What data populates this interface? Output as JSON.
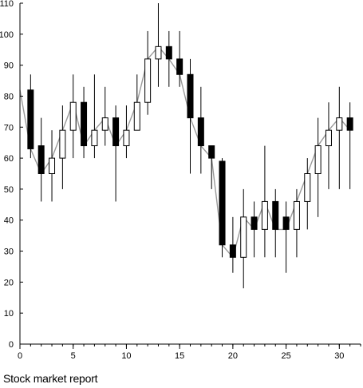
{
  "caption": "Stock market report",
  "chart_data": {
    "type": "candlestick",
    "title": "",
    "xlabel": "",
    "ylabel": "",
    "xlim": [
      0,
      32
    ],
    "ylim": [
      0,
      110
    ],
    "x_ticks": [
      0,
      5,
      10,
      15,
      20,
      25,
      30
    ],
    "y_ticks": [
      0,
      10,
      20,
      30,
      40,
      50,
      60,
      70,
      80,
      90,
      100,
      110
    ],
    "grid": false,
    "legend": "none",
    "colors": {
      "up_fill": "#ffffff",
      "down_fill": "#000000",
      "line": "#9a9a9a",
      "axis": "#000000"
    },
    "close_line_start": 82,
    "candles": [
      {
        "x": 1,
        "open": 82,
        "close": 63,
        "high": 87,
        "low": 60
      },
      {
        "x": 2,
        "open": 64,
        "close": 55,
        "high": 73,
        "low": 46
      },
      {
        "x": 3,
        "open": 55,
        "close": 60,
        "high": 69,
        "low": 46
      },
      {
        "x": 4,
        "open": 60,
        "close": 69,
        "high": 77,
        "low": 50
      },
      {
        "x": 5,
        "open": 69,
        "close": 78,
        "high": 87,
        "low": 60
      },
      {
        "x": 6,
        "open": 78,
        "close": 64,
        "high": 83,
        "low": 60
      },
      {
        "x": 7,
        "open": 64,
        "close": 69,
        "high": 87,
        "low": 60
      },
      {
        "x": 8,
        "open": 69,
        "close": 73,
        "high": 83,
        "low": 64
      },
      {
        "x": 9,
        "open": 73,
        "close": 64,
        "high": 77,
        "low": 46
      },
      {
        "x": 10,
        "open": 64,
        "close": 69,
        "high": 77,
        "low": 60
      },
      {
        "x": 11,
        "open": 69,
        "close": 78,
        "high": 87,
        "low": 69
      },
      {
        "x": 12,
        "open": 78,
        "close": 92,
        "high": 101,
        "low": 74
      },
      {
        "x": 13,
        "open": 92,
        "close": 96,
        "high": 110,
        "low": 83
      },
      {
        "x": 14,
        "open": 96,
        "close": 92,
        "high": 101,
        "low": 83
      },
      {
        "x": 15,
        "open": 92,
        "close": 87,
        "high": 101,
        "low": 83
      },
      {
        "x": 16,
        "open": 87,
        "close": 73,
        "high": 92,
        "low": 55
      },
      {
        "x": 17,
        "open": 73,
        "close": 64,
        "high": 83,
        "low": 55
      },
      {
        "x": 18,
        "open": 64,
        "close": 60,
        "high": 64,
        "low": 50
      },
      {
        "x": 19,
        "open": 59,
        "close": 32,
        "high": 60,
        "low": 28
      },
      {
        "x": 20,
        "open": 32,
        "close": 28,
        "high": 41,
        "low": 23
      },
      {
        "x": 21,
        "open": 28,
        "close": 41,
        "high": 50,
        "low": 18
      },
      {
        "x": 22,
        "open": 41,
        "close": 37,
        "high": 46,
        "low": 28
      },
      {
        "x": 23,
        "open": 37,
        "close": 46,
        "high": 64,
        "low": 28
      },
      {
        "x": 24,
        "open": 46,
        "close": 37,
        "high": 50,
        "low": 28
      },
      {
        "x": 25,
        "open": 41,
        "close": 37,
        "high": 46,
        "low": 23
      },
      {
        "x": 26,
        "open": 37,
        "close": 46,
        "high": 50,
        "low": 28
      },
      {
        "x": 27,
        "open": 46,
        "close": 55,
        "high": 60,
        "low": 37
      },
      {
        "x": 28,
        "open": 55,
        "close": 64,
        "high": 73,
        "low": 41
      },
      {
        "x": 29,
        "open": 64,
        "close": 69,
        "high": 78,
        "low": 50
      },
      {
        "x": 30,
        "open": 69,
        "close": 73,
        "high": 83,
        "low": 50
      },
      {
        "x": 31,
        "open": 73,
        "close": 69,
        "high": 78,
        "low": 50
      }
    ]
  }
}
